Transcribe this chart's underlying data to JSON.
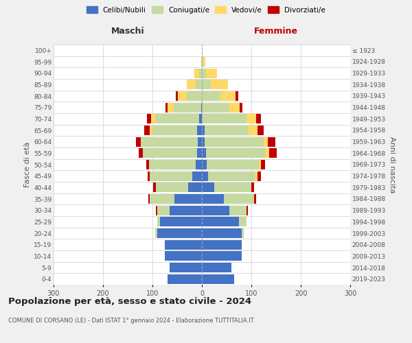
{
  "age_groups": [
    "0-4",
    "5-9",
    "10-14",
    "15-19",
    "20-24",
    "25-29",
    "30-34",
    "35-39",
    "40-44",
    "45-49",
    "50-54",
    "55-59",
    "60-64",
    "65-69",
    "70-74",
    "75-79",
    "80-84",
    "85-89",
    "90-94",
    "95-99",
    "100+"
  ],
  "birth_years": [
    "2019-2023",
    "2014-2018",
    "2009-2013",
    "2004-2008",
    "1999-2003",
    "1994-1998",
    "1989-1993",
    "1984-1988",
    "1979-1983",
    "1974-1978",
    "1969-1973",
    "1964-1968",
    "1959-1963",
    "1954-1958",
    "1949-1953",
    "1944-1948",
    "1939-1943",
    "1934-1938",
    "1929-1933",
    "1924-1928",
    "≤ 1923"
  ],
  "males": {
    "celibi": [
      70,
      65,
      75,
      75,
      90,
      85,
      65,
      55,
      28,
      20,
      12,
      10,
      8,
      10,
      5,
      2,
      0,
      0,
      0,
      0,
      0
    ],
    "coniugati": [
      0,
      0,
      0,
      0,
      5,
      5,
      25,
      50,
      65,
      85,
      95,
      110,
      115,
      90,
      90,
      55,
      30,
      12,
      5,
      2,
      0
    ],
    "vedovi": [
      0,
      0,
      0,
      0,
      0,
      0,
      0,
      0,
      0,
      0,
      0,
      0,
      0,
      5,
      8,
      12,
      18,
      18,
      10,
      0,
      0
    ],
    "divorziati": [
      0,
      0,
      0,
      0,
      0,
      0,
      3,
      3,
      5,
      5,
      5,
      8,
      10,
      12,
      8,
      5,
      5,
      0,
      0,
      0,
      0
    ]
  },
  "females": {
    "nubili": [
      65,
      60,
      80,
      80,
      80,
      75,
      55,
      45,
      25,
      12,
      10,
      8,
      5,
      5,
      0,
      0,
      0,
      0,
      0,
      0,
      0
    ],
    "coniugate": [
      0,
      0,
      0,
      0,
      5,
      15,
      35,
      60,
      75,
      95,
      105,
      120,
      120,
      90,
      90,
      55,
      38,
      18,
      8,
      2,
      0
    ],
    "vedove": [
      0,
      0,
      0,
      0,
      0,
      0,
      0,
      0,
      0,
      5,
      5,
      8,
      8,
      18,
      20,
      22,
      30,
      35,
      22,
      5,
      2
    ],
    "divorziate": [
      0,
      0,
      0,
      0,
      0,
      0,
      3,
      5,
      5,
      8,
      8,
      15,
      15,
      12,
      10,
      5,
      5,
      0,
      0,
      0,
      0
    ]
  },
  "colors": {
    "celibi": "#4472C4",
    "coniugati": "#c5d9a0",
    "vedovi": "#FFD966",
    "divorziati": "#C00000"
  },
  "xlim": 300,
  "title": "Popolazione per età, sesso e stato civile - 2024",
  "subtitle": "COMUNE DI CORSANO (LE) - Dati ISTAT 1° gennaio 2024 - Elaborazione TUTTITALIA.IT",
  "xlabel_left": "Maschi",
  "xlabel_right": "Femmine",
  "ylabel_left": "Fasce di età",
  "ylabel_right": "Anni di nascita",
  "bg_color": "#f0f0f0",
  "plot_bg_color": "#ffffff",
  "grid_color": "#cccccc"
}
